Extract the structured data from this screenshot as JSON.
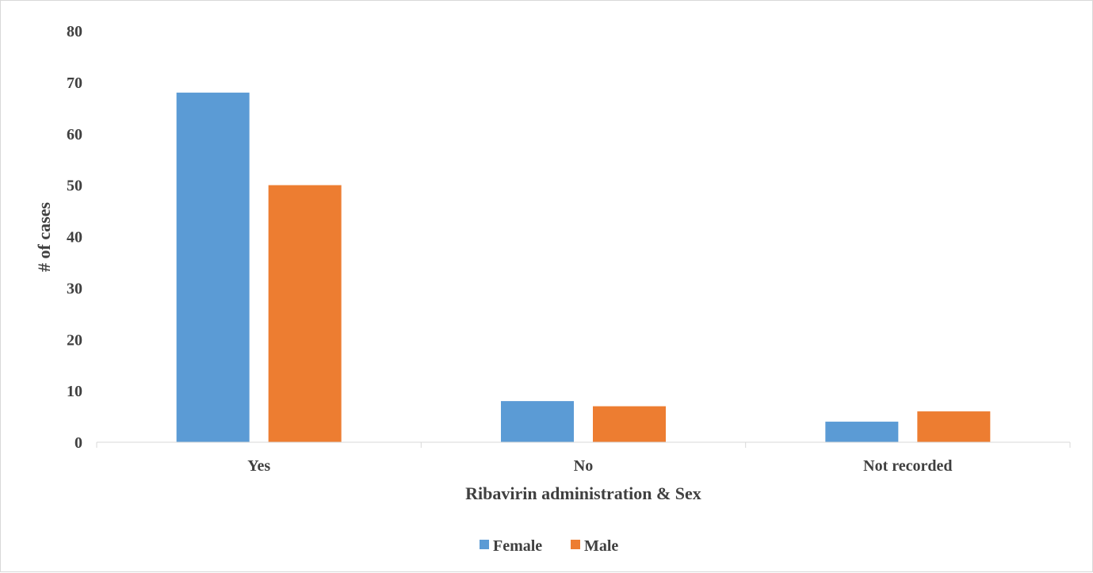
{
  "chart_data": {
    "type": "bar",
    "categories": [
      "Yes",
      "No",
      "Not recorded"
    ],
    "series": [
      {
        "name": "Female",
        "values": [
          68,
          8,
          4
        ],
        "color": "#5b9bd5"
      },
      {
        "name": "Male",
        "values": [
          50,
          7,
          6
        ],
        "color": "#ed7d31"
      }
    ],
    "xlabel": "Ribavirin administration & Sex",
    "ylabel": "# of cases",
    "ylim": [
      0,
      80
    ],
    "yticks": [
      "0",
      "10",
      "20",
      "30",
      "40",
      "50",
      "60",
      "70",
      "80"
    ],
    "grid": false,
    "legend_position": "bottom",
    "axis_color": "#d9d9d9"
  }
}
